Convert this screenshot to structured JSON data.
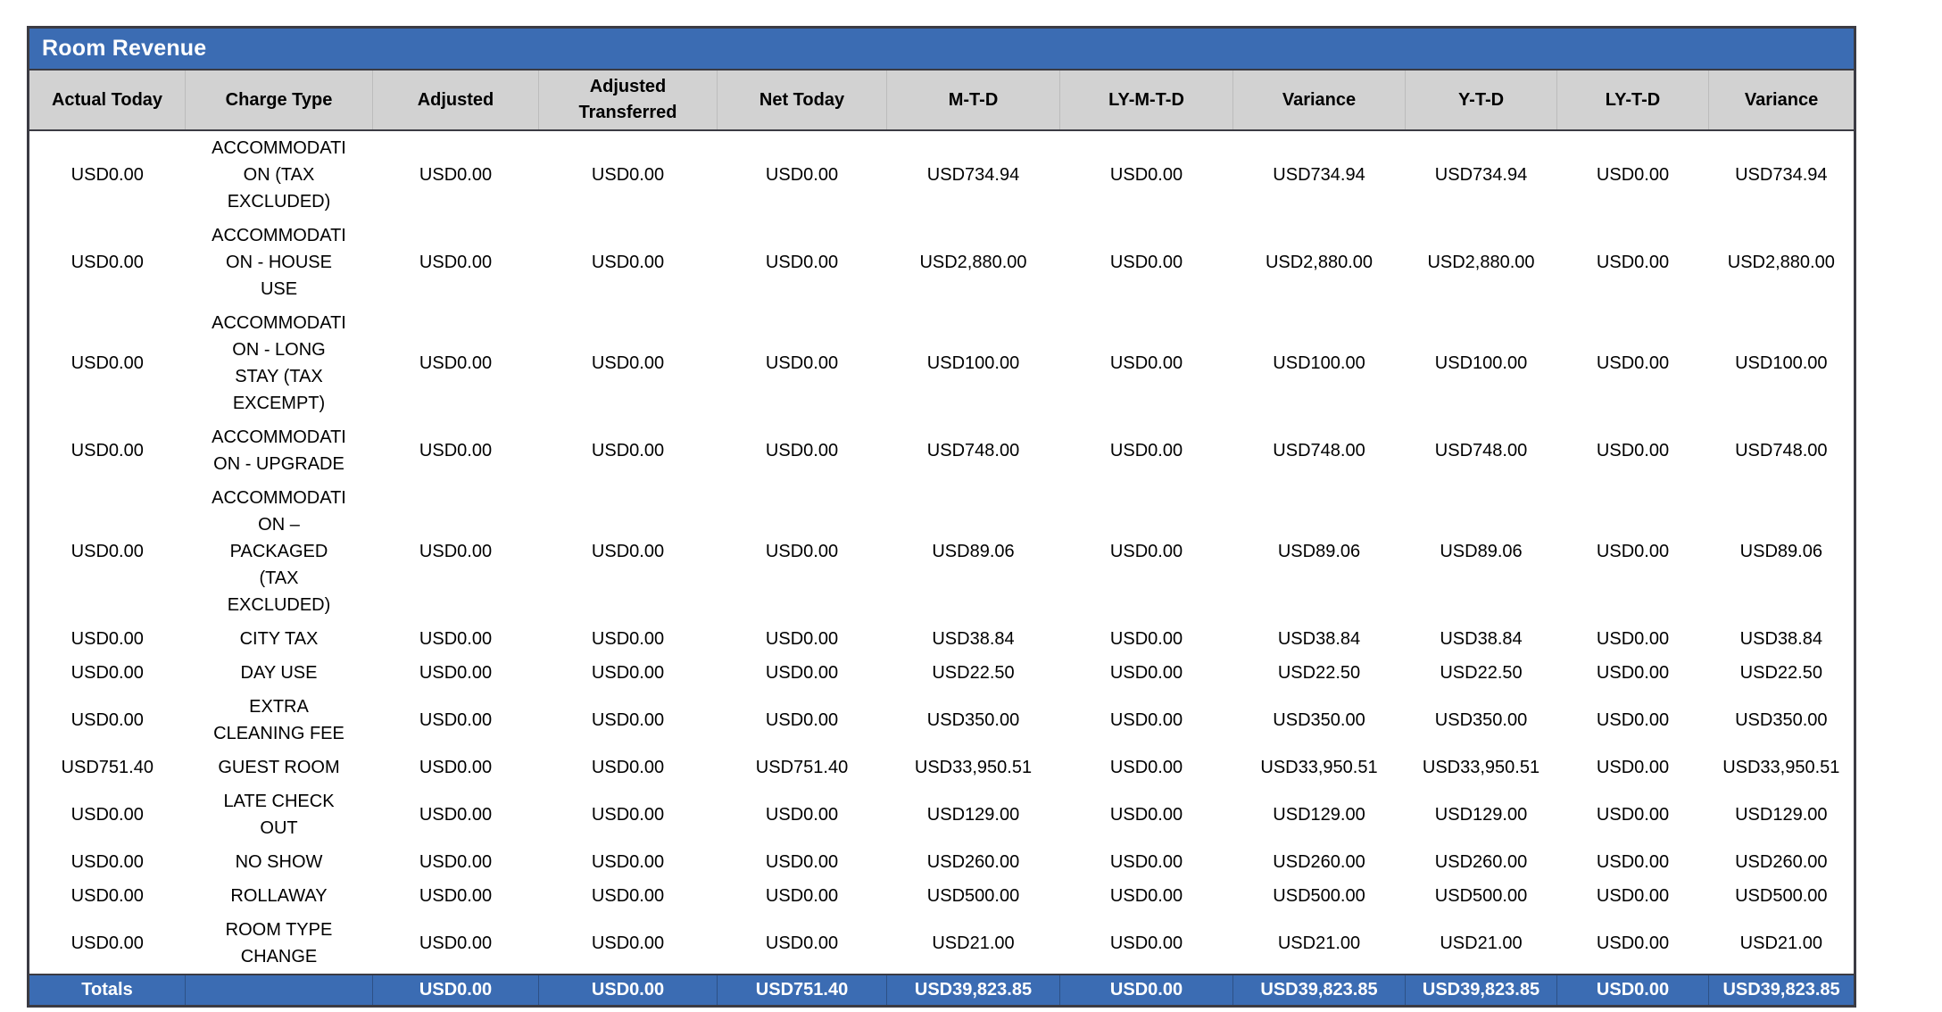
{
  "table": {
    "title": "Room Revenue",
    "columns": [
      "Actual Today",
      "Charge Type",
      "Adjusted",
      "Adjusted Transferred",
      "Net Today",
      "M-T-D",
      "LY-M-T-D",
      "Variance",
      "Y-T-D",
      "LY-T-D",
      "Variance"
    ],
    "column_keys": [
      "actual-today",
      "charge-type",
      "adjusted",
      "adjusted-transferred",
      "net-today",
      "mtd",
      "ly-mtd",
      "variance-mtd",
      "ytd",
      "ly-td",
      "variance-ytd"
    ],
    "rows": [
      [
        "USD0.00",
        "ACCOMMODATION (TAX EXCLUDED)",
        "USD0.00",
        "USD0.00",
        "USD0.00",
        "USD734.94",
        "USD0.00",
        "USD734.94",
        "USD734.94",
        "USD0.00",
        "USD734.94"
      ],
      [
        "USD0.00",
        "ACCOMMODATION - HOUSE USE",
        "USD0.00",
        "USD0.00",
        "USD0.00",
        "USD2,880.00",
        "USD0.00",
        "USD2,880.00",
        "USD2,880.00",
        "USD0.00",
        "USD2,880.00"
      ],
      [
        "USD0.00",
        "ACCOMMODATION - LONG STAY (TAX EXCEMPT)",
        "USD0.00",
        "USD0.00",
        "USD0.00",
        "USD100.00",
        "USD0.00",
        "USD100.00",
        "USD100.00",
        "USD0.00",
        "USD100.00"
      ],
      [
        "USD0.00",
        "ACCOMMODATION - UPGRADE",
        "USD0.00",
        "USD0.00",
        "USD0.00",
        "USD748.00",
        "USD0.00",
        "USD748.00",
        "USD748.00",
        "USD0.00",
        "USD748.00"
      ],
      [
        "USD0.00",
        "ACCOMMODATION – PACKAGED (TAX EXCLUDED)",
        "USD0.00",
        "USD0.00",
        "USD0.00",
        "USD89.06",
        "USD0.00",
        "USD89.06",
        "USD89.06",
        "USD0.00",
        "USD89.06"
      ],
      [
        "USD0.00",
        "CITY TAX",
        "USD0.00",
        "USD0.00",
        "USD0.00",
        "USD38.84",
        "USD0.00",
        "USD38.84",
        "USD38.84",
        "USD0.00",
        "USD38.84"
      ],
      [
        "USD0.00",
        "DAY USE",
        "USD0.00",
        "USD0.00",
        "USD0.00",
        "USD22.50",
        "USD0.00",
        "USD22.50",
        "USD22.50",
        "USD0.00",
        "USD22.50"
      ],
      [
        "USD0.00",
        "EXTRA CLEANING FEE",
        "USD0.00",
        "USD0.00",
        "USD0.00",
        "USD350.00",
        "USD0.00",
        "USD350.00",
        "USD350.00",
        "USD0.00",
        "USD350.00"
      ],
      [
        "USD751.40",
        "GUEST ROOM",
        "USD0.00",
        "USD0.00",
        "USD751.40",
        "USD33,950.51",
        "USD0.00",
        "USD33,950.51",
        "USD33,950.51",
        "USD0.00",
        "USD33,950.51"
      ],
      [
        "USD0.00",
        "LATE CHECK OUT",
        "USD0.00",
        "USD0.00",
        "USD0.00",
        "USD129.00",
        "USD0.00",
        "USD129.00",
        "USD129.00",
        "USD0.00",
        "USD129.00"
      ],
      [
        "USD0.00",
        "NO SHOW",
        "USD0.00",
        "USD0.00",
        "USD0.00",
        "USD260.00",
        "USD0.00",
        "USD260.00",
        "USD260.00",
        "USD0.00",
        "USD260.00"
      ],
      [
        "USD0.00",
        "ROLLAWAY",
        "USD0.00",
        "USD0.00",
        "USD0.00",
        "USD500.00",
        "USD0.00",
        "USD500.00",
        "USD500.00",
        "USD0.00",
        "USD500.00"
      ],
      [
        "USD0.00",
        "ROOM TYPE CHANGE",
        "USD0.00",
        "USD0.00",
        "USD0.00",
        "USD21.00",
        "USD0.00",
        "USD21.00",
        "USD21.00",
        "USD0.00",
        "USD21.00"
      ]
    ],
    "totals_row": [
      "Totals",
      "",
      "USD0.00",
      "USD0.00",
      "USD751.40",
      "USD39,823.85",
      "USD0.00",
      "USD39,823.85",
      "USD39,823.85",
      "USD0.00",
      "USD39,823.85"
    ],
    "colors": {
      "title_bar_blue": "#3B6CB3",
      "column_header_gray": "#D2D2D2",
      "table_border": "#3B3B43",
      "body_background": "#FFFFFF",
      "title_text": "#FFFFFF",
      "body_text": "#000000"
    }
  }
}
